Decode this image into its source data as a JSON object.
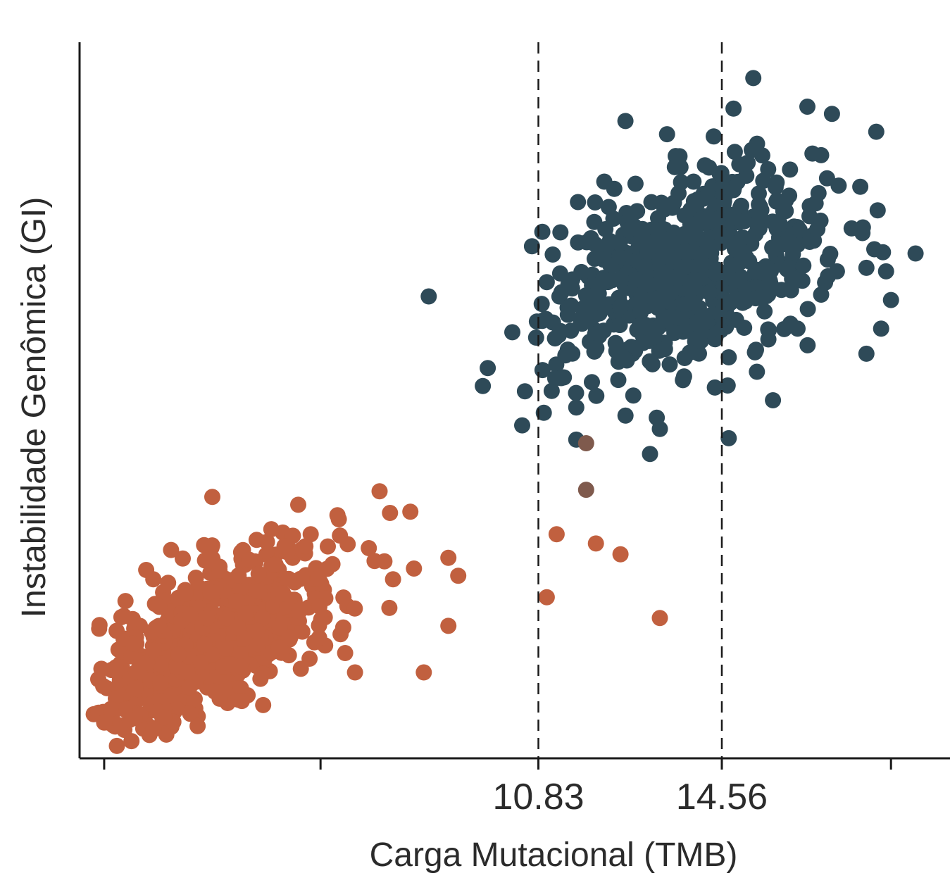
{
  "chart_data": {
    "type": "scatter",
    "title": "",
    "xlabel": "Carga Mutacional (TMB)",
    "ylabel": "Instabilidade Genômica (GI)",
    "xlim": [
      1.5,
      19.2
    ],
    "ylim": [
      0,
      100
    ],
    "x_tick_values": [
      2,
      6.4,
      10.83,
      14.56,
      18
    ],
    "x_tick_labels": [
      "",
      "",
      "10.83",
      "14.56",
      ""
    ],
    "y_ticks_shown": false,
    "grid": false,
    "legend": "none",
    "reference_lines": [
      {
        "axis": "x",
        "value": 10.83,
        "style": "dashed",
        "color": "#1a1a1a"
      },
      {
        "axis": "x",
        "value": 14.56,
        "style": "dashed",
        "color": "#1a1a1a"
      }
    ],
    "series": [
      {
        "color": "#c1603f",
        "cluster": {
          "n": 720,
          "center_x": 4.2,
          "center_y": 17,
          "sd_x": 1.25,
          "sd_y": 6.5,
          "correlation": 0.65
        },
        "points": [
          [
            4.2,
            36.5
          ],
          [
            7.6,
            37.3
          ],
          [
            6.2,
            31.3
          ],
          [
            5.1,
            30.5
          ],
          [
            3.0,
            25.0
          ],
          [
            3.3,
            24.5
          ],
          [
            7.7,
            27.5
          ],
          [
            8.3,
            26.5
          ],
          [
            7.8,
            21.0
          ],
          [
            11.2,
            31.3
          ],
          [
            12.0,
            30.0
          ],
          [
            12.5,
            28.5
          ],
          [
            11.0,
            22.5
          ],
          [
            13.3,
            19.6
          ],
          [
            9.0,
            18.5
          ],
          [
            8.5,
            12.0
          ],
          [
            6.0,
            12.5
          ],
          [
            7.1,
            12.0
          ],
          [
            4.8,
            8.0
          ],
          [
            3.9,
            4.5
          ],
          [
            2.0,
            5.0
          ],
          [
            6.9,
            14.7
          ],
          [
            9.2,
            25.5
          ],
          [
            9.0,
            28.0
          ],
          [
            5.4,
            32.0
          ]
        ]
      },
      {
        "color": "#2e4a58",
        "cluster": {
          "n": 640,
          "center_x": 13.9,
          "center_y": 68,
          "sd_x": 1.35,
          "sd_y": 6.8,
          "correlation": 0.35
        },
        "points": [
          [
            15.2,
            95.0
          ],
          [
            16.3,
            91.0
          ],
          [
            16.8,
            90.0
          ],
          [
            12.6,
            89.0
          ],
          [
            10.7,
            71.5
          ],
          [
            8.6,
            64.5
          ],
          [
            10.3,
            59.5
          ],
          [
            9.8,
            54.5
          ],
          [
            9.7,
            52.0
          ],
          [
            10.5,
            46.5
          ],
          [
            13.1,
            42.5
          ],
          [
            11.6,
            44.5
          ],
          [
            14.7,
            44.7
          ],
          [
            15.6,
            50.0
          ],
          [
            18.5,
            70.5
          ],
          [
            17.5,
            68.5
          ],
          [
            17.2,
            74.0
          ],
          [
            17.9,
            68.0
          ],
          [
            18.0,
            64.0
          ],
          [
            17.8,
            60.0
          ],
          [
            17.5,
            56.5
          ],
          [
            16.7,
            81.0
          ],
          [
            14.3,
            82.5
          ],
          [
            19.1,
            78.5
          ],
          [
            17.7,
            87.5
          ],
          [
            11.1,
            51.3
          ],
          [
            10.8,
            61.0
          ],
          [
            11.0,
            66.5
          ],
          [
            16.9,
            68.0
          ],
          [
            11.6,
            49.0
          ],
          [
            14.7,
            56.0
          ],
          [
            13.5,
            55.0
          ],
          [
            16.1,
            60.0
          ],
          [
            12.4,
            58.0
          ],
          [
            13.3,
            46.0
          ]
        ]
      },
      {
        "color": "#7f5a4d",
        "points": [
          [
            11.8,
            44.0
          ],
          [
            11.8,
            37.5
          ]
        ]
      }
    ]
  }
}
